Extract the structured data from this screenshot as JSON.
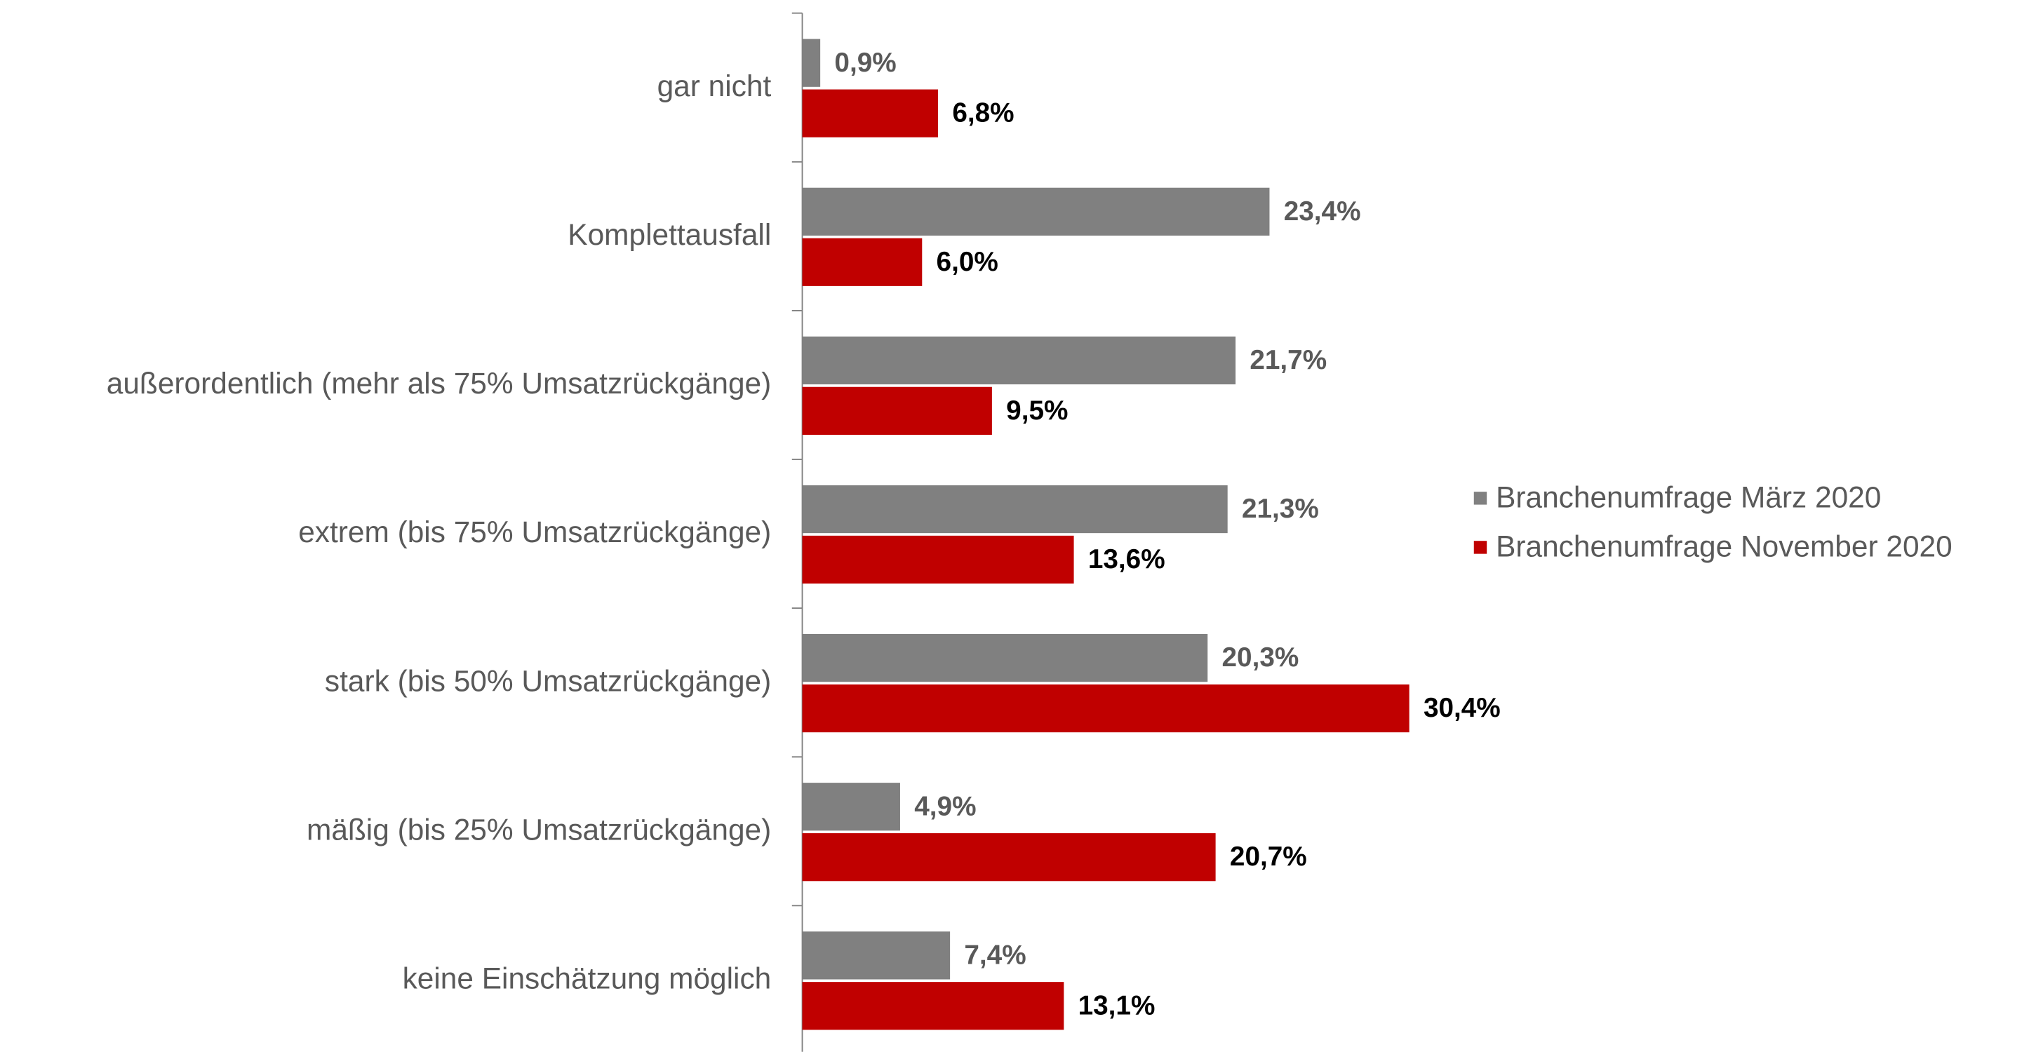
{
  "chart_data": {
    "type": "bar",
    "orientation": "horizontal",
    "categories": [
      "gar nicht",
      "Komplettausfall",
      "außerordentlich (mehr als 75% Umsatzrückgänge)",
      "extrem (bis 75% Umsatzrückgänge)",
      "stark (bis 50% Umsatzrückgänge)",
      "mäßig (bis 25% Umsatzrückgänge)",
      "keine Einschätzung möglich"
    ],
    "series": [
      {
        "name": "Branchenumfrage März 2020",
        "color": "#808080",
        "label_color": "#595959",
        "values": [
          0.9,
          23.4,
          21.7,
          21.3,
          20.3,
          4.9,
          7.4
        ],
        "value_labels": [
          "0,9%",
          "23,4%",
          "21,7%",
          "21,3%",
          "20,3%",
          "4,9%",
          "7,4%"
        ]
      },
      {
        "name": "Branchenumfrage November 2020",
        "color": "#c00000",
        "label_color": "#000000",
        "values": [
          6.8,
          6.0,
          9.5,
          13.6,
          30.4,
          20.7,
          13.1
        ],
        "value_labels": [
          "6,8%",
          "6,0%",
          "9,5%",
          "13,6%",
          "30,4%",
          "20,7%",
          "13,1%"
        ]
      }
    ],
    "legend": "right"
  }
}
